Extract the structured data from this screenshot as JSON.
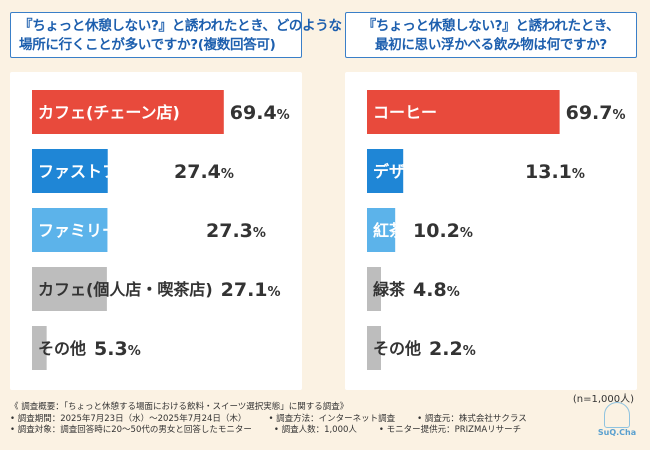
{
  "left": {
    "title_lines": [
      "『ちょっと休憩しない?』と誘われたとき、どのような",
      "場所に行くことが多いですか?(複数回答可)"
    ]
  },
  "right": {
    "title_lines": [
      "『ちょっと休憩しない?』と誘われたとき、",
      "最初に思い浮かべる飲み物は何ですか?"
    ]
  },
  "chart_data": [
    {
      "type": "bar",
      "title": "『ちょっと休憩しない?』と誘われたとき、どのような場所に行くことが多いですか?(複数回答可)",
      "categories": [
        "カフェ(チェーン店)",
        "ファストフード店",
        "ファミリーレストラン",
        "カフェ(個人店・喫茶店)",
        "その他"
      ],
      "values": [
        69.4,
        27.4,
        27.3,
        27.1,
        5.3
      ],
      "value_labels": [
        "69.4",
        "27.4",
        "27.3",
        "27.1",
        "5.3"
      ],
      "colors": [
        "#e84a3c",
        "#1f86d6",
        "#5cb3ea",
        "#bdbdbd",
        "#bdbdbd"
      ],
      "label_colors": [
        "#ffffff",
        "#ffffff",
        "#ffffff",
        "#333333",
        "#333333"
      ],
      "unit": "%",
      "xlim": [
        0,
        100
      ]
    },
    {
      "type": "bar",
      "title": "『ちょっと休憩しない?』と誘われたとき、最初に思い浮かべる飲み物は何ですか?",
      "categories": [
        "コーヒー",
        "デザート系ドリンク",
        "紅茶",
        "緑茶",
        "その他"
      ],
      "values": [
        69.7,
        13.1,
        10.2,
        4.8,
        2.2
      ],
      "value_labels": [
        "69.7",
        "13.1",
        "10.2",
        "4.8",
        "2.2"
      ],
      "colors": [
        "#e84a3c",
        "#1f86d6",
        "#5cb3ea",
        "#bdbdbd",
        "#bdbdbd"
      ],
      "label_colors": [
        "#ffffff",
        "#ffffff",
        "#ffffff",
        "#333333",
        "#333333"
      ],
      "unit": "%",
      "xlim": [
        0,
        100
      ]
    }
  ],
  "sample_size": "(n=1,000人)",
  "footer": {
    "line1": "《 調査概要：「ちょっと休憩する場面における飲料・スイーツ選択実態」に関する調査》",
    "line2": [
      "• 調査期間：2025年7月23日（水）〜2025年7月24日（木）",
      "• 調査方法：インターネット調査",
      "• 調査元：株式会社サクラス"
    ],
    "line3": [
      "• 調査対象：調査回答時に20〜50代の男女と回答したモニター",
      "• 調査人数：1,000人",
      "• モニター提供元：PRIZMAリサーチ"
    ]
  },
  "logo": {
    "text": "SuQ.Cha"
  }
}
